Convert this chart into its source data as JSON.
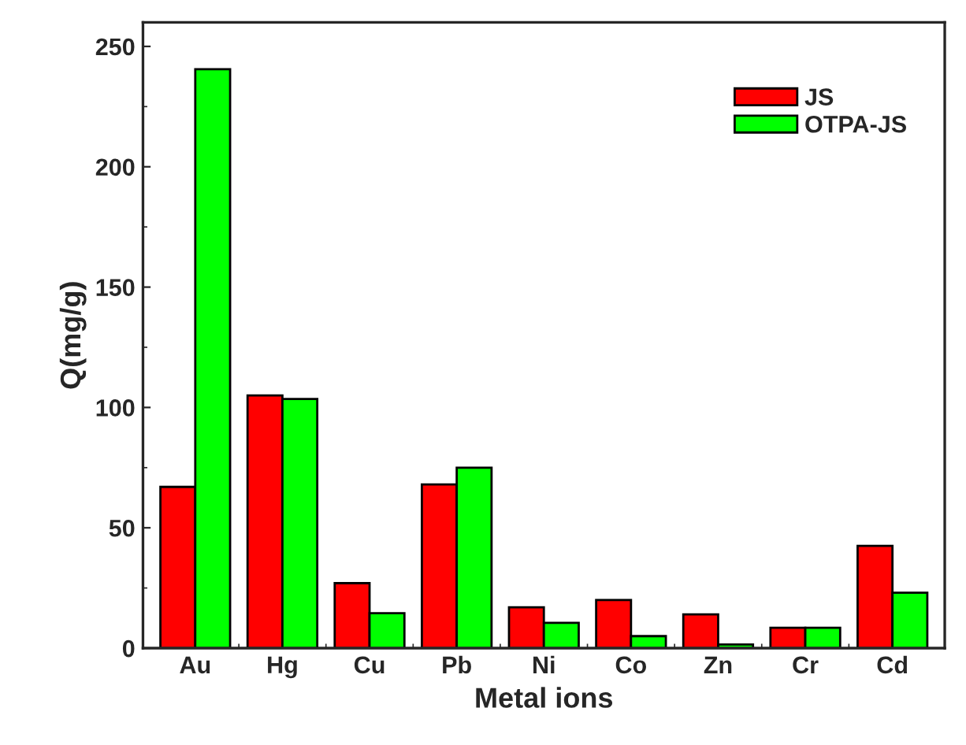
{
  "chart_data": {
    "type": "bar",
    "xlabel": "Metal ions",
    "ylabel": "Q(mg/g)",
    "categories": [
      "Au",
      "Hg",
      "Cu",
      "Pb",
      "Ni",
      "Co",
      "Zn",
      "Cr",
      "Cd"
    ],
    "series": [
      {
        "name": "JS",
        "color": "#ff0000",
        "values": [
          67,
          105,
          27,
          68,
          17,
          20,
          14,
          8.5,
          42.5
        ]
      },
      {
        "name": "OTPA-JS",
        "color": "#00ff00",
        "values": [
          240.5,
          103.5,
          14.5,
          75,
          10.5,
          5,
          1.5,
          8.5,
          23
        ]
      }
    ],
    "ylim": [
      0,
      260
    ],
    "yticks": [
      0,
      50,
      100,
      150,
      200,
      250
    ],
    "grid": false,
    "legend": "top right"
  }
}
